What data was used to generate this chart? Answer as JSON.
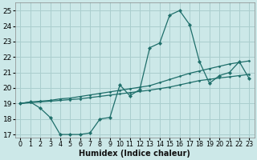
{
  "xlabel": "Humidex (Indice chaleur)",
  "xlim": [
    -0.5,
    23.5
  ],
  "ylim": [
    16.8,
    25.5
  ],
  "yticks": [
    17,
    18,
    19,
    20,
    21,
    22,
    23,
    24,
    25
  ],
  "xticks": [
    0,
    1,
    2,
    3,
    4,
    5,
    6,
    7,
    8,
    9,
    10,
    11,
    12,
    13,
    14,
    15,
    16,
    17,
    18,
    19,
    20,
    21,
    22,
    23
  ],
  "bg_color": "#cce8e8",
  "grid_color": "#aacece",
  "line_color": "#1e6e6a",
  "line1_y": [
    19.0,
    19.1,
    18.7,
    18.1,
    17.0,
    17.0,
    17.0,
    17.1,
    18.0,
    18.1,
    20.2,
    19.5,
    19.9,
    22.6,
    22.9,
    24.7,
    25.0,
    24.1,
    21.7,
    20.3,
    20.8,
    21.0,
    21.7,
    20.6
  ],
  "line2_y": [
    19.0,
    19.1,
    19.15,
    19.2,
    19.3,
    19.35,
    19.45,
    19.55,
    19.65,
    19.75,
    19.85,
    19.95,
    20.05,
    20.15,
    20.35,
    20.55,
    20.75,
    20.95,
    21.1,
    21.25,
    21.4,
    21.55,
    21.65,
    21.75
  ],
  "line3_y": [
    19.0,
    19.05,
    19.1,
    19.15,
    19.2,
    19.25,
    19.3,
    19.38,
    19.46,
    19.54,
    19.62,
    19.7,
    19.78,
    19.86,
    19.96,
    20.06,
    20.2,
    20.34,
    20.48,
    20.56,
    20.65,
    20.72,
    20.8,
    20.88
  ]
}
